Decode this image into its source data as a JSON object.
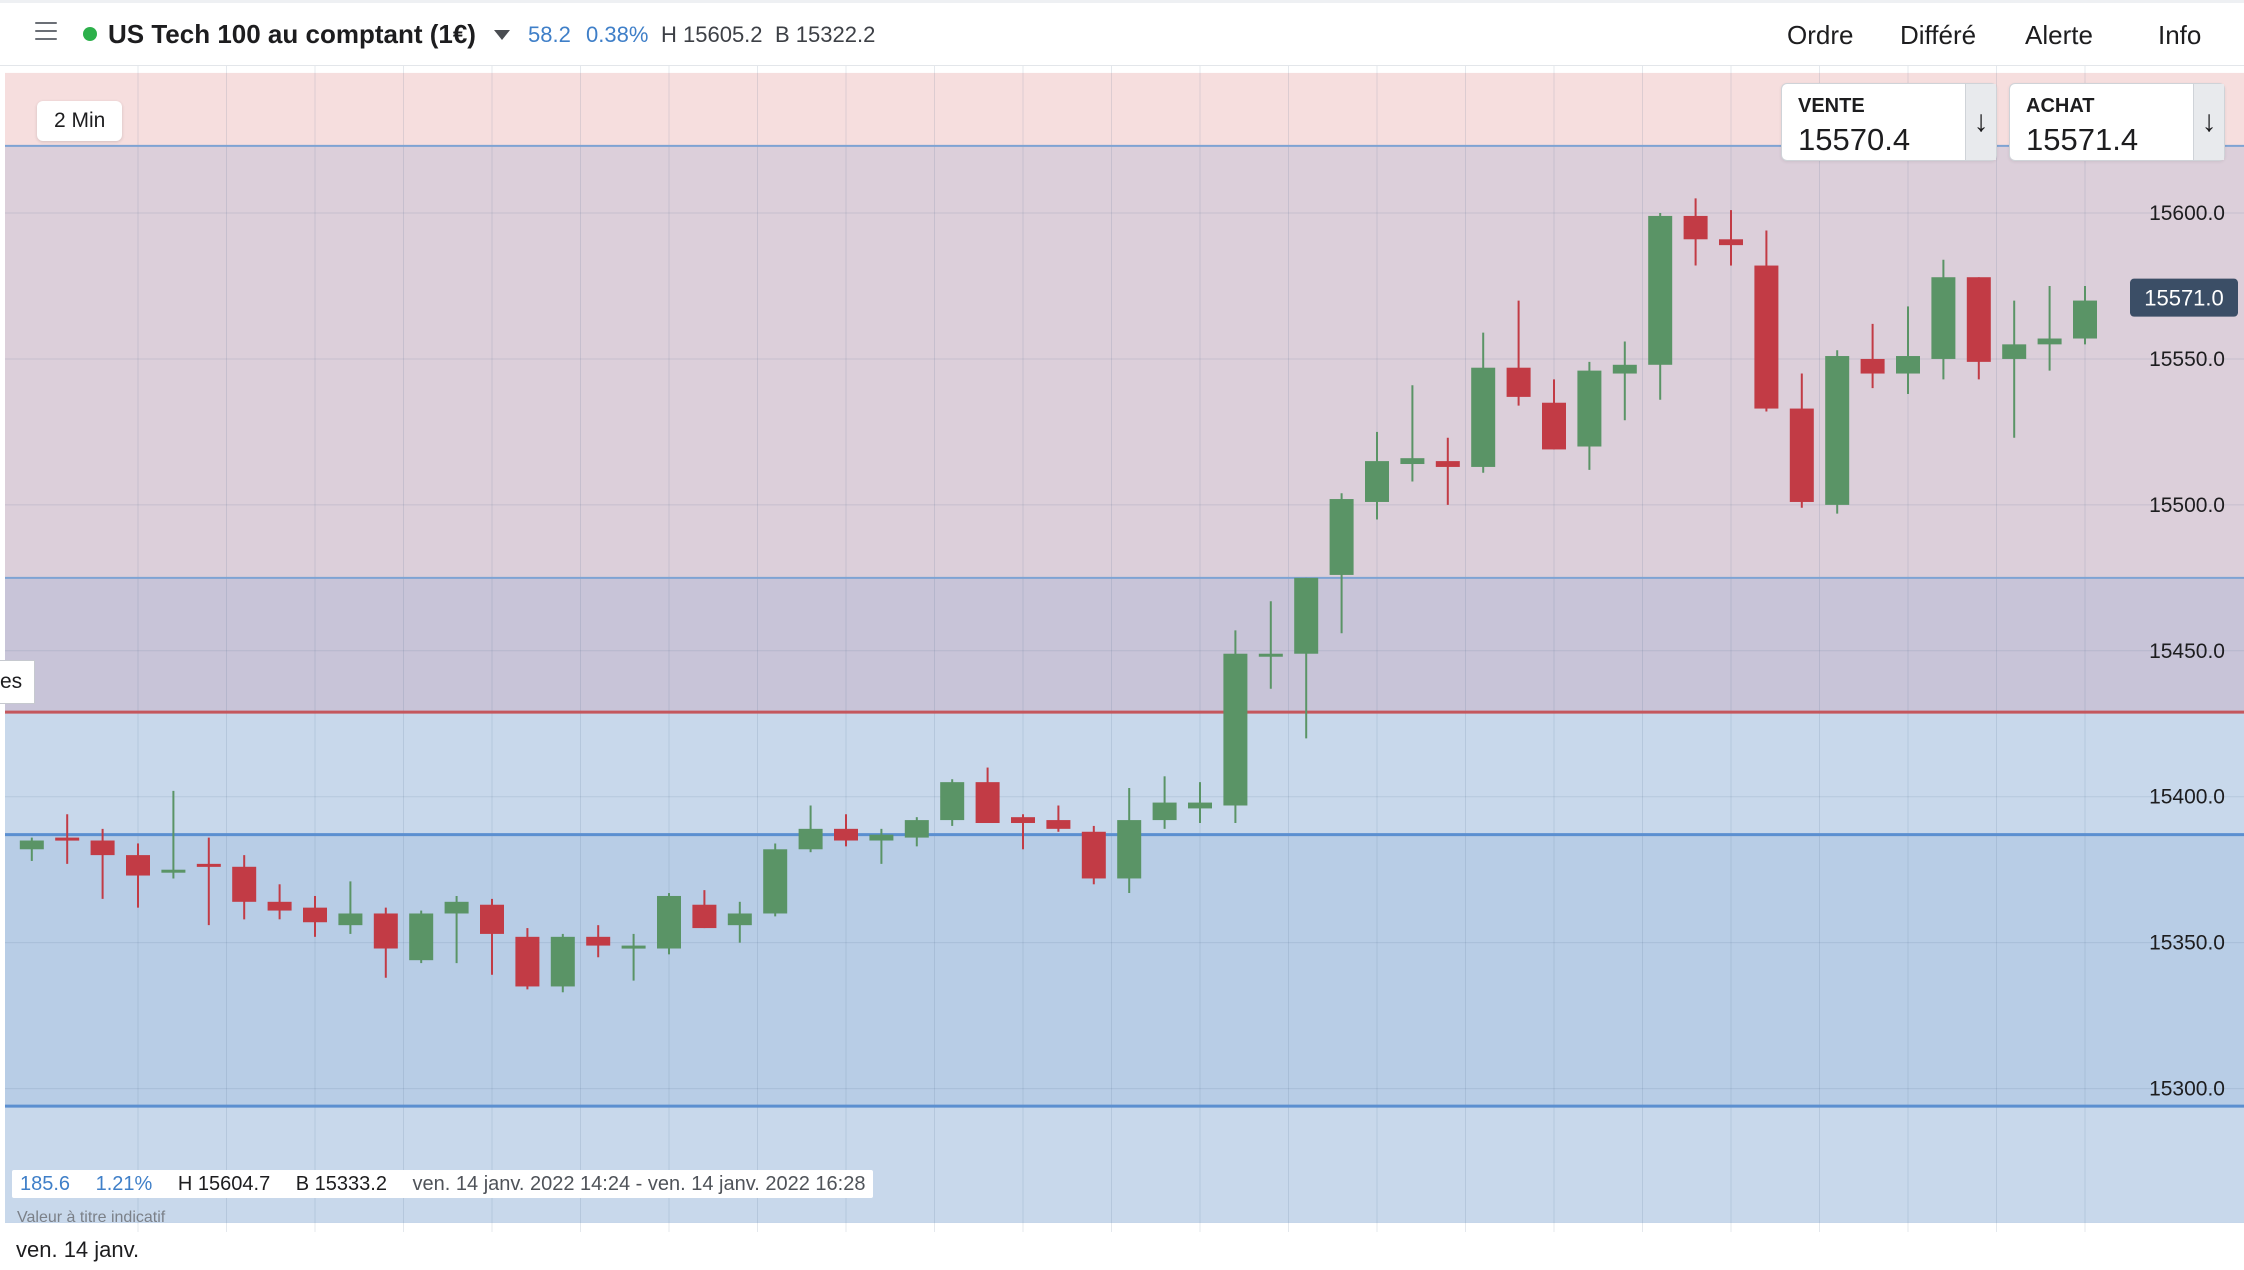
{
  "header": {
    "instrument": "US Tech 100 au comptant (1€)",
    "change_abs": "58.2",
    "change_pct": "0.38%",
    "high": "H 15605.2",
    "low": "B 15322.2",
    "status_color": "#2db04b",
    "nav": {
      "ordre": "Ordre",
      "differe": "Différé",
      "alerte": "Alerte",
      "info": "Info"
    },
    "icons": [
      "hamburger-icon",
      "caret-down-icon"
    ]
  },
  "quote": {
    "sell_label": "VENTE",
    "sell_value": "15570.4",
    "buy_label": "ACHAT",
    "buy_value": "15571.4",
    "arrow_icon": "↓"
  },
  "chart": {
    "interval": "2 Min",
    "side_tab": "es",
    "current_price_label": "15571.0",
    "date_label": "ven. 14 janv.",
    "stats": {
      "change_abs": "185.6",
      "change_pct": "1.21%",
      "high": "H 15604.7",
      "low": "B 15333.2",
      "range": "ven. 14 janv. 2022 14:24 - ven. 14 janv. 2022 16:28"
    },
    "disclaimer": "Valeur à titre indicatif"
  },
  "chart_data": {
    "type": "candlestick",
    "yticks": [
      15300,
      15350,
      15400,
      15450,
      15500,
      15550,
      15600
    ],
    "ytick_labels": [
      "15300.0",
      "15350.0",
      "15400.0",
      "15450.0",
      "15500.0",
      "15550.0",
      "15600.0"
    ],
    "ylim": [
      15252,
      15650
    ],
    "xticks": [
      "14:40",
      "14:50",
      "15:00",
      "15:10",
      "15:20",
      "15:30",
      "15:40",
      "15:50",
      "16:00",
      "16:10",
      "16:20"
    ],
    "xtick_partial": "0",
    "xlim": [
      "14:23",
      "16:28"
    ],
    "current_price": 15571,
    "zones": [
      {
        "from": 15254,
        "to": 15648,
        "color": "#f6dede"
      },
      {
        "from": 15254,
        "to": 15623,
        "color": "#dccfda"
      },
      {
        "from": 15254,
        "to": 15475,
        "color": "#c8c4d8"
      },
      {
        "from": 15254,
        "to": 15429,
        "color": "#c8d8eb"
      },
      {
        "from": 15254,
        "to": 15387,
        "color": "#b8cde6"
      },
      {
        "from": 15254,
        "to": 15294,
        "color": "#c8d8eb"
      }
    ],
    "hlines": [
      {
        "y": 15623,
        "color": "#7ea3d3",
        "width": 2
      },
      {
        "y": 15475,
        "color": "#7ea3d3",
        "width": 2
      },
      {
        "y": 15429,
        "color": "#c4575d",
        "width": 3
      },
      {
        "y": 15387,
        "color": "#5b8fd0",
        "width": 3
      },
      {
        "y": 15294,
        "color": "#5b8fd0",
        "width": 3
      }
    ],
    "up_color": "#5a9466",
    "down_color": "#c23b45",
    "candles": [
      {
        "t": "14:24",
        "o": 15382,
        "h": 15386,
        "l": 15378,
        "c": 15385
      },
      {
        "t": "14:26",
        "o": 15386,
        "h": 15394,
        "l": 15377,
        "c": 15385
      },
      {
        "t": "14:28",
        "o": 15385,
        "h": 15389,
        "l": 15365,
        "c": 15380
      },
      {
        "t": "14:30",
        "o": 15380,
        "h": 15384,
        "l": 15362,
        "c": 15373
      },
      {
        "t": "14:32",
        "o": 15374,
        "h": 15402,
        "l": 15372,
        "c": 15375
      },
      {
        "t": "14:34",
        "o": 15377,
        "h": 15386,
        "l": 15356,
        "c": 15376
      },
      {
        "t": "14:36",
        "o": 15376,
        "h": 15380,
        "l": 15358,
        "c": 15364
      },
      {
        "t": "14:38",
        "o": 15364,
        "h": 15370,
        "l": 15358,
        "c": 15361
      },
      {
        "t": "14:40",
        "o": 15362,
        "h": 15366,
        "l": 15352,
        "c": 15357
      },
      {
        "t": "14:42",
        "o": 15356,
        "h": 15371,
        "l": 15353,
        "c": 15360
      },
      {
        "t": "14:44",
        "o": 15360,
        "h": 15362,
        "l": 15338,
        "c": 15348
      },
      {
        "t": "14:46",
        "o": 15344,
        "h": 15361,
        "l": 15343,
        "c": 15360
      },
      {
        "t": "14:48",
        "o": 15360,
        "h": 15366,
        "l": 15343,
        "c": 15364
      },
      {
        "t": "14:50",
        "o": 15363,
        "h": 15365,
        "l": 15339,
        "c": 15353
      },
      {
        "t": "14:52",
        "o": 15352,
        "h": 15355,
        "l": 15334,
        "c": 15335
      },
      {
        "t": "14:54",
        "o": 15335,
        "h": 15353,
        "l": 15333,
        "c": 15352
      },
      {
        "t": "14:56",
        "o": 15352,
        "h": 15356,
        "l": 15345,
        "c": 15349
      },
      {
        "t": "14:58",
        "o": 15349,
        "h": 15353,
        "l": 15337,
        "c": 15349
      },
      {
        "t": "15:00",
        "o": 15348,
        "h": 15367,
        "l": 15346,
        "c": 15366
      },
      {
        "t": "15:02",
        "o": 15363,
        "h": 15368,
        "l": 15355,
        "c": 15355
      },
      {
        "t": "15:04",
        "o": 15356,
        "h": 15364,
        "l": 15350,
        "c": 15360
      },
      {
        "t": "15:06",
        "o": 15360,
        "h": 15384,
        "l": 15359,
        "c": 15382
      },
      {
        "t": "15:08",
        "o": 15382,
        "h": 15397,
        "l": 15381,
        "c": 15389
      },
      {
        "t": "15:10",
        "o": 15389,
        "h": 15394,
        "l": 15383,
        "c": 15385
      },
      {
        "t": "15:12",
        "o": 15385,
        "h": 15389,
        "l": 15377,
        "c": 15387
      },
      {
        "t": "15:14",
        "o": 15386,
        "h": 15393,
        "l": 15383,
        "c": 15392
      },
      {
        "t": "15:16",
        "o": 15392,
        "h": 15406,
        "l": 15390,
        "c": 15405
      },
      {
        "t": "15:18",
        "o": 15405,
        "h": 15410,
        "l": 15392,
        "c": 15391
      },
      {
        "t": "15:20",
        "o": 15393,
        "h": 15394,
        "l": 15382,
        "c": 15391
      },
      {
        "t": "15:22",
        "o": 15392,
        "h": 15397,
        "l": 15388,
        "c": 15389
      },
      {
        "t": "15:24",
        "o": 15388,
        "h": 15390,
        "l": 15370,
        "c": 15372
      },
      {
        "t": "15:26",
        "o": 15372,
        "h": 15403,
        "l": 15367,
        "c": 15392
      },
      {
        "t": "15:28",
        "o": 15392,
        "h": 15407,
        "l": 15389,
        "c": 15398
      },
      {
        "t": "15:30",
        "o": 15396,
        "h": 15405,
        "l": 15391,
        "c": 15398
      },
      {
        "t": "15:32",
        "o": 15397,
        "h": 15457,
        "l": 15391,
        "c": 15449
      },
      {
        "t": "15:34",
        "o": 15449,
        "h": 15467,
        "l": 15437,
        "c": 15449
      },
      {
        "t": "15:36",
        "o": 15449,
        "h": 15475,
        "l": 15420,
        "c": 15475
      },
      {
        "t": "15:38",
        "o": 15476,
        "h": 15504,
        "l": 15456,
        "c": 15502
      },
      {
        "t": "15:40",
        "o": 15501,
        "h": 15525,
        "l": 15495,
        "c": 15515
      },
      {
        "t": "15:42",
        "o": 15514,
        "h": 15541,
        "l": 15508,
        "c": 15516
      },
      {
        "t": "15:44",
        "o": 15515,
        "h": 15523,
        "l": 15500,
        "c": 15513
      },
      {
        "t": "15:46",
        "o": 15513,
        "h": 15559,
        "l": 15511,
        "c": 15547
      },
      {
        "t": "15:48",
        "o": 15547,
        "h": 15570,
        "l": 15534,
        "c": 15537
      },
      {
        "t": "15:50",
        "o": 15535,
        "h": 15543,
        "l": 15519,
        "c": 15519
      },
      {
        "t": "15:52",
        "o": 15520,
        "h": 15549,
        "l": 15512,
        "c": 15546
      },
      {
        "t": "15:54",
        "o": 15545,
        "h": 15556,
        "l": 15529,
        "c": 15548
      },
      {
        "t": "15:56",
        "o": 15548,
        "h": 15600,
        "l": 15536,
        "c": 15599
      },
      {
        "t": "15:58",
        "o": 15599,
        "h": 15605,
        "l": 15582,
        "c": 15591
      },
      {
        "t": "16:00",
        "o": 15591,
        "h": 15601,
        "l": 15582,
        "c": 15589
      },
      {
        "t": "16:02",
        "o": 15582,
        "h": 15594,
        "l": 15532,
        "c": 15533
      },
      {
        "t": "16:04",
        "o": 15533,
        "h": 15545,
        "l": 15499,
        "c": 15501
      },
      {
        "t": "16:06",
        "o": 15500,
        "h": 15553,
        "l": 15497,
        "c": 15551
      },
      {
        "t": "16:08",
        "o": 15550,
        "h": 15562,
        "l": 15540,
        "c": 15545
      },
      {
        "t": "16:10",
        "o": 15545,
        "h": 15568,
        "l": 15538,
        "c": 15551
      },
      {
        "t": "16:12",
        "o": 15550,
        "h": 15584,
        "l": 15543,
        "c": 15578
      },
      {
        "t": "16:14",
        "o": 15578,
        "h": 15578,
        "l": 15543,
        "c": 15549
      },
      {
        "t": "16:16",
        "o": 15550,
        "h": 15570,
        "l": 15523,
        "c": 15555
      },
      {
        "t": "16:18",
        "o": 15555,
        "h": 15575,
        "l": 15546,
        "c": 15557
      },
      {
        "t": "16:20",
        "o": 15557,
        "h": 15575,
        "l": 15555,
        "c": 15570
      }
    ]
  }
}
